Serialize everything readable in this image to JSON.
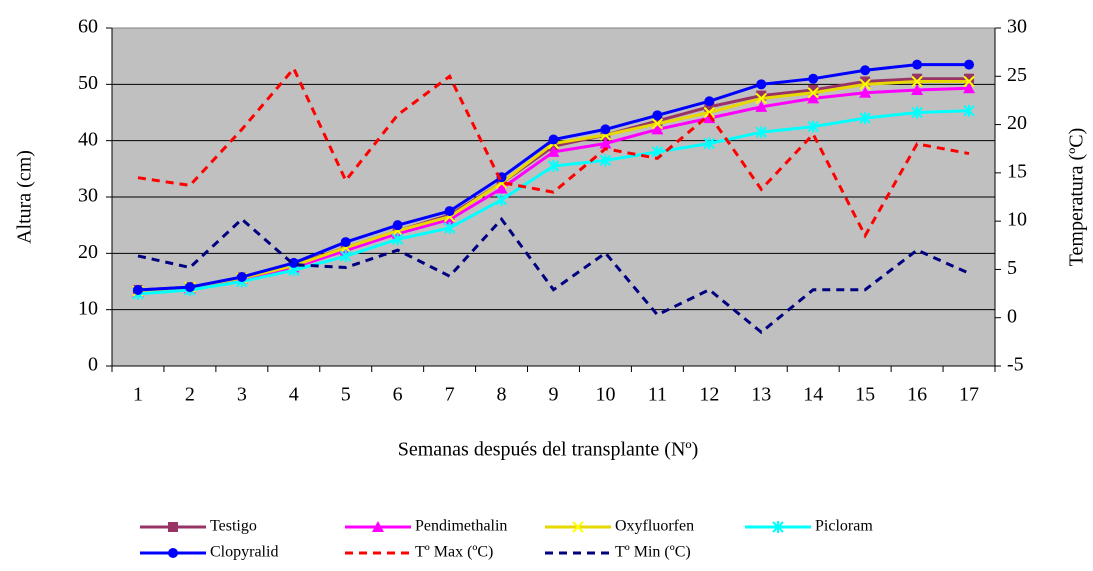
{
  "chart_data": {
    "type": "line",
    "x_label": "Semanas después del transplante (Nº)",
    "y_label": "Altura (cm)",
    "y2_label": "Temperatura (ºC)",
    "categories": [
      "1",
      "2",
      "3",
      "4",
      "5",
      "6",
      "7",
      "8",
      "9",
      "10",
      "11",
      "12",
      "13",
      "14",
      "15",
      "16",
      "17"
    ],
    "ylim": [
      0,
      60
    ],
    "yticks": [
      0,
      10,
      20,
      30,
      40,
      50,
      60
    ],
    "y2lim": [
      -5,
      30
    ],
    "y2ticks": [
      -5,
      0,
      5,
      10,
      15,
      20,
      25,
      30
    ],
    "grid": true,
    "background": "#c0c0c0",
    "legend": "bottom",
    "series": [
      {
        "name": "Testigo",
        "color": "#993366",
        "marker": "square",
        "values": [
          13.5,
          14,
          15.7,
          18,
          21,
          24,
          26.8,
          32.5,
          39,
          41,
          43.5,
          46,
          48,
          49,
          50.5,
          51,
          51
        ]
      },
      {
        "name": "Pendimethalin",
        "color": "#ff00ff",
        "marker": "triangle",
        "values": [
          13.2,
          13.8,
          15.5,
          17.5,
          20.5,
          23.5,
          26,
          31.5,
          38,
          39.5,
          42,
          44,
          46,
          47.5,
          48.5,
          49,
          49.3
        ]
      },
      {
        "name": "Oxyfluorfen",
        "color": "#ffff00",
        "marker": "x",
        "values": [
          13.3,
          14,
          15.6,
          17.8,
          21,
          24,
          26.5,
          32.5,
          39.5,
          41,
          43,
          45,
          47.5,
          48.5,
          50,
          50.5,
          50.5
        ]
      },
      {
        "name": "Picloram",
        "color": "#00ffff",
        "marker": "star",
        "values": [
          12.8,
          13.5,
          15,
          17,
          19.5,
          22.5,
          24.5,
          29.5,
          35.5,
          36.5,
          38,
          39.5,
          41.5,
          42.5,
          44,
          45,
          45.3
        ]
      },
      {
        "name": "Clopyralid",
        "color": "#0000ff",
        "marker": "circle",
        "values": [
          13.5,
          14,
          15.8,
          18.3,
          22,
          25,
          27.5,
          33.5,
          40.2,
          42,
          44.5,
          47,
          50,
          51,
          52.5,
          53.5,
          53.5
        ]
      },
      {
        "name": "Tº Max (ºC)",
        "color": "#ff0000",
        "dashed": true,
        "axis": "y2",
        "values": [
          14.5,
          13.7,
          19.5,
          25.8,
          14.2,
          21,
          25,
          14,
          13,
          17.5,
          16.5,
          21,
          13.3,
          19,
          8.5,
          18,
          17
        ]
      },
      {
        "name": "Tº Min (ºC)",
        "color": "#000080",
        "dashed": true,
        "axis": "y2",
        "values": [
          6.4,
          5.2,
          10.2,
          5.5,
          5.2,
          7,
          4.3,
          10.2,
          2.9,
          6.7,
          0.3,
          2.9,
          -1.5,
          2.9,
          2.9,
          7,
          4.6
        ]
      }
    ]
  }
}
